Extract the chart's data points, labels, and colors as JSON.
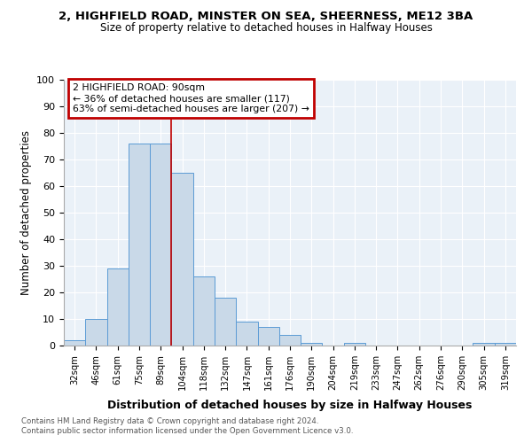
{
  "title_line1": "2, HIGHFIELD ROAD, MINSTER ON SEA, SHEERNESS, ME12 3BA",
  "title_line2": "Size of property relative to detached houses in Halfway Houses",
  "xlabel": "Distribution of detached houses by size in Halfway Houses",
  "ylabel": "Number of detached properties",
  "footnote1": "Contains HM Land Registry data © Crown copyright and database right 2024.",
  "footnote2": "Contains public sector information licensed under the Open Government Licence v3.0.",
  "annotation_line1": "2 HIGHFIELD ROAD: 90sqm",
  "annotation_line2": "← 36% of detached houses are smaller (117)",
  "annotation_line3": "63% of semi-detached houses are larger (207) →",
  "bar_labels": [
    "32sqm",
    "46sqm",
    "61sqm",
    "75sqm",
    "89sqm",
    "104sqm",
    "118sqm",
    "132sqm",
    "147sqm",
    "161sqm",
    "176sqm",
    "190sqm",
    "204sqm",
    "219sqm",
    "233sqm",
    "247sqm",
    "262sqm",
    "276sqm",
    "290sqm",
    "305sqm",
    "319sqm"
  ],
  "bar_values": [
    2,
    10,
    29,
    76,
    76,
    65,
    26,
    18,
    9,
    7,
    4,
    1,
    0,
    1,
    0,
    0,
    0,
    0,
    0,
    1,
    1
  ],
  "bar_color": "#c9d9e8",
  "bar_edge_color": "#5b9bd5",
  "vline_x": 4.5,
  "vline_color": "#c00000",
  "ylim": [
    0,
    100
  ],
  "yticks": [
    0,
    10,
    20,
    30,
    40,
    50,
    60,
    70,
    80,
    90,
    100
  ],
  "bg_color": "#eaf1f8",
  "annotation_box_color": "#c00000",
  "annotation_bg": "#ffffff"
}
